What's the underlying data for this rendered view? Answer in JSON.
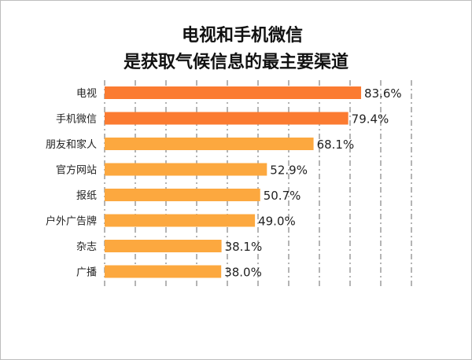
{
  "chart_data": {
    "type": "bar",
    "orientation": "horizontal",
    "title_lines": [
      "电视和手机微信",
      "是获取气候信息的最主要渠道"
    ],
    "categories": [
      "电视",
      "手机微信",
      "朋友和家人",
      "官方网站",
      "报纸",
      "户外广告牌",
      "杂志",
      "广播"
    ],
    "values": [
      83.6,
      79.4,
      68.1,
      52.9,
      50.7,
      49.0,
      38.1,
      38.0
    ],
    "value_labels": [
      "83.6%",
      "79.4%",
      "68.1%",
      "52.9%",
      "50.7%",
      "49.0%",
      "38.1%",
      "38.0%"
    ],
    "xlim": [
      0,
      100
    ],
    "grid": "vertical-dashed",
    "legend": "none",
    "colors": {
      "highlight": "#fb7b31",
      "normal": "#fca83f"
    },
    "highlight_count": 2
  }
}
